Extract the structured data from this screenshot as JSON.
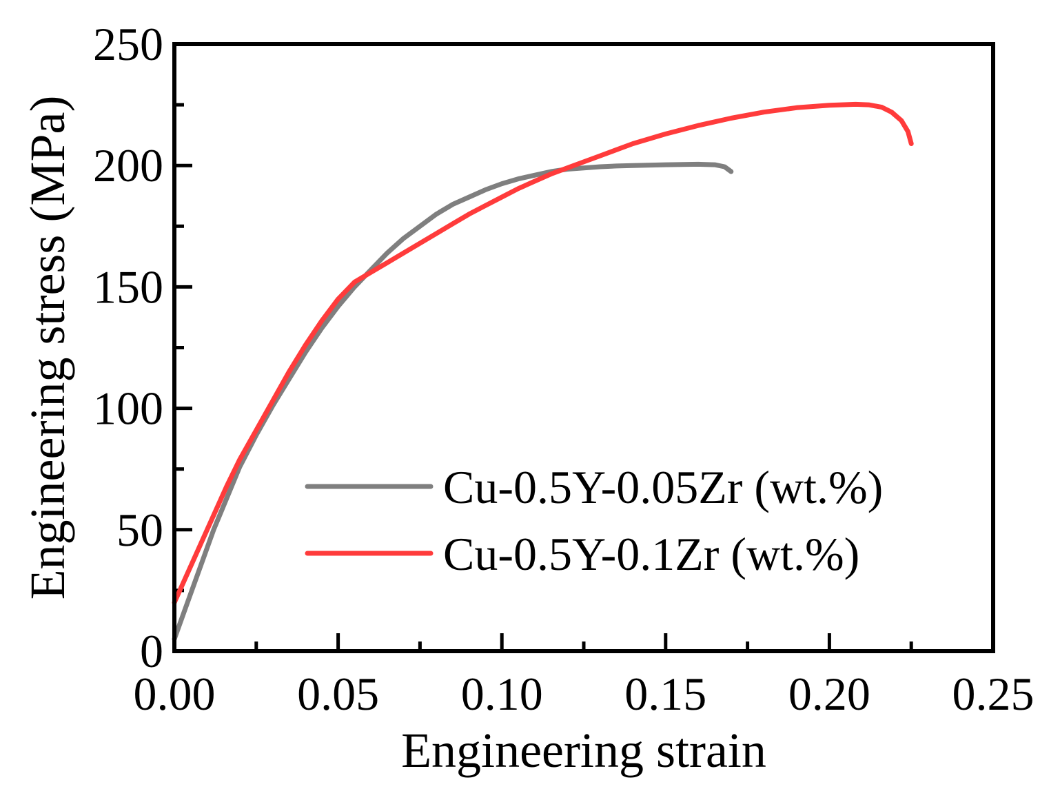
{
  "chart_data": {
    "type": "line",
    "title": "",
    "xlabel": "Engineering strain",
    "ylabel": "Engineering stress (MPa)",
    "xlim": [
      0,
      0.25
    ],
    "ylim": [
      0,
      250
    ],
    "grid": false,
    "legend_position": "bottom-right",
    "x_ticks": [
      "0.00",
      "0.05",
      "0.10",
      "0.15",
      "0.20",
      "0.25"
    ],
    "y_ticks": [
      "0",
      "50",
      "100",
      "150",
      "200",
      "250"
    ],
    "series": [
      {
        "name": "Cu-0.5Y-0.05Zr (wt.%)",
        "color": "#7f7f7f",
        "points": [
          [
            0.0,
            5
          ],
          [
            0.004,
            20
          ],
          [
            0.008,
            35
          ],
          [
            0.012,
            50
          ],
          [
            0.016,
            63
          ],
          [
            0.02,
            76
          ],
          [
            0.025,
            89
          ],
          [
            0.03,
            101
          ],
          [
            0.035,
            112
          ],
          [
            0.04,
            123
          ],
          [
            0.045,
            133
          ],
          [
            0.05,
            142
          ],
          [
            0.055,
            150
          ],
          [
            0.06,
            157
          ],
          [
            0.065,
            164
          ],
          [
            0.07,
            170
          ],
          [
            0.075,
            175
          ],
          [
            0.08,
            180
          ],
          [
            0.085,
            184
          ],
          [
            0.09,
            187
          ],
          [
            0.095,
            190
          ],
          [
            0.1,
            192.5
          ],
          [
            0.105,
            194.5
          ],
          [
            0.11,
            196
          ],
          [
            0.115,
            197.5
          ],
          [
            0.12,
            198.5
          ],
          [
            0.125,
            199
          ],
          [
            0.13,
            199.5
          ],
          [
            0.135,
            199.8
          ],
          [
            0.14,
            200
          ],
          [
            0.15,
            200.3
          ],
          [
            0.16,
            200.5
          ],
          [
            0.165,
            200.3
          ],
          [
            0.168,
            199.5
          ],
          [
            0.17,
            197.5
          ]
        ]
      },
      {
        "name": "Cu-0.5Y-0.1Zr (wt.%)",
        "color": "#ff3b3b",
        "points": [
          [
            0.0,
            20
          ],
          [
            0.004,
            32
          ],
          [
            0.008,
            44
          ],
          [
            0.012,
            56
          ],
          [
            0.016,
            68
          ],
          [
            0.02,
            79
          ],
          [
            0.025,
            91
          ],
          [
            0.03,
            103
          ],
          [
            0.035,
            115
          ],
          [
            0.04,
            126
          ],
          [
            0.045,
            136
          ],
          [
            0.05,
            145
          ],
          [
            0.055,
            152
          ],
          [
            0.06,
            156
          ],
          [
            0.065,
            160
          ],
          [
            0.07,
            164
          ],
          [
            0.075,
            168
          ],
          [
            0.08,
            172
          ],
          [
            0.085,
            176
          ],
          [
            0.09,
            180
          ],
          [
            0.095,
            183.5
          ],
          [
            0.1,
            187
          ],
          [
            0.105,
            190.5
          ],
          [
            0.11,
            193.5
          ],
          [
            0.115,
            196.5
          ],
          [
            0.12,
            199
          ],
          [
            0.125,
            201.5
          ],
          [
            0.13,
            204
          ],
          [
            0.135,
            206.5
          ],
          [
            0.14,
            209
          ],
          [
            0.15,
            213
          ],
          [
            0.16,
            216.5
          ],
          [
            0.17,
            219.5
          ],
          [
            0.18,
            222
          ],
          [
            0.19,
            223.8
          ],
          [
            0.2,
            224.8
          ],
          [
            0.208,
            225.2
          ],
          [
            0.212,
            225
          ],
          [
            0.216,
            224
          ],
          [
            0.219,
            222
          ],
          [
            0.222,
            218.5
          ],
          [
            0.224,
            214
          ],
          [
            0.225,
            209
          ]
        ]
      }
    ]
  }
}
